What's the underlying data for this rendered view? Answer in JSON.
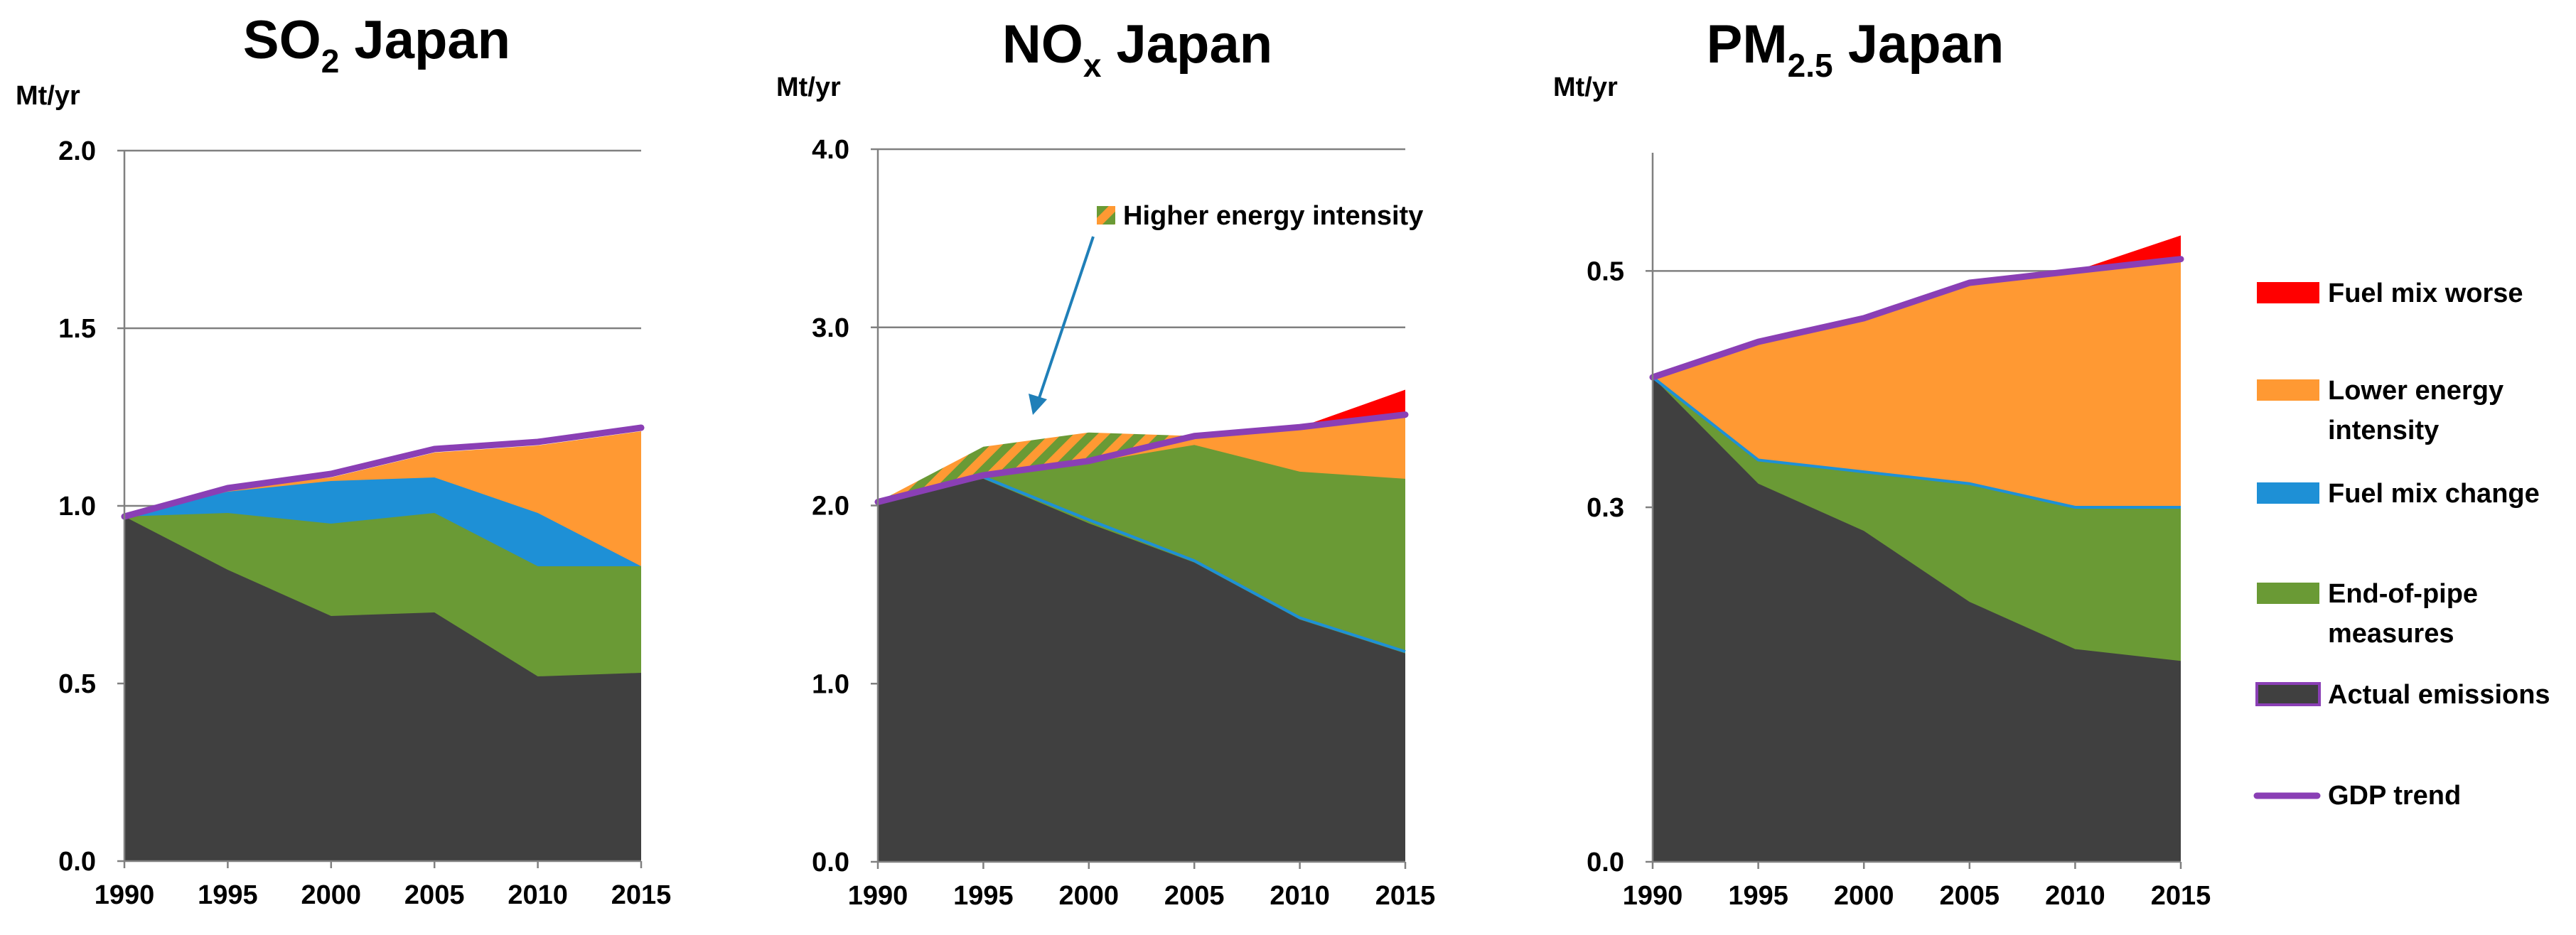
{
  "figure": {
    "legend": [
      {
        "key": "fuel_mix_worse",
        "label_lines": [
          "Fuel mix worse"
        ],
        "color": "#ff0000",
        "kind": "area"
      },
      {
        "key": "lower_energy_intensity",
        "label_lines": [
          "Lower energy",
          "intensity"
        ],
        "color": "#ff9933",
        "kind": "area"
      },
      {
        "key": "fuel_mix_change",
        "label_lines": [
          "Fuel mix change"
        ],
        "color": "#1e90d6",
        "kind": "area"
      },
      {
        "key": "end_of_pipe",
        "label_lines": [
          "End-of-pipe",
          "measures"
        ],
        "color": "#6a9a35",
        "kind": "area"
      },
      {
        "key": "actual",
        "label_lines": [
          "Actual emissions"
        ],
        "color": "#404040",
        "kind": "area"
      },
      {
        "key": "gdp",
        "label_lines": [
          "GDP trend"
        ],
        "color": "#8a3fb5",
        "kind": "line"
      }
    ],
    "colors": {
      "actual": "#404040",
      "end_of_pipe": "#6a9a35",
      "fuel_mix_change": "#1e90d6",
      "lower_energy_intensity": "#ff9933",
      "fuel_mix_worse": "#ff0000",
      "gdp": "#8a3fb5",
      "arrow": "#1f7fb8",
      "grid": "#808080"
    }
  },
  "chart_data": [
    {
      "type": "area",
      "title_main": "SO",
      "title_sub": "2",
      "title_rest": " Japan",
      "ylabel": "Mt/yr",
      "x": [
        1990,
        1995,
        2000,
        2005,
        2010,
        2015
      ],
      "xtick_labels": [
        "1990",
        "1995",
        "2000",
        "2005",
        "2010",
        "2015"
      ],
      "ylim": [
        0,
        2.0
      ],
      "yticks": [
        0,
        0.5,
        1.0,
        1.5,
        2.0
      ],
      "ytick_labels": [
        "0.0",
        "0.5",
        "1.0",
        "1.5",
        "2.0"
      ],
      "gridlines": [
        0.5,
        1.0,
        1.5,
        2.0
      ],
      "layers_cumulative": {
        "actual": [
          0.97,
          0.82,
          0.69,
          0.7,
          0.52,
          0.53
        ],
        "end_of_pipe": [
          0.97,
          0.98,
          0.95,
          0.98,
          0.83,
          0.83
        ],
        "fuel_mix_change": [
          0.97,
          1.04,
          1.07,
          1.08,
          0.98,
          0.83
        ],
        "lower_energy_intensity": [
          0.97,
          1.05,
          1.08,
          1.15,
          1.17,
          1.21
        ]
      },
      "gdp_trend": [
        0.97,
        1.05,
        1.09,
        1.16,
        1.18,
        1.22
      ]
    },
    {
      "type": "area",
      "title_main": "NO",
      "title_sub": "x",
      "title_rest": " Japan",
      "ylabel": "Mt/yr",
      "x": [
        1990,
        1995,
        2000,
        2005,
        2010,
        2015
      ],
      "xtick_labels": [
        "1990",
        "1995",
        "2000",
        "2005",
        "2010",
        "2015"
      ],
      "ylim": [
        0,
        4.0
      ],
      "yticks": [
        0,
        1.0,
        2.0,
        3.0,
        4.0
      ],
      "ytick_labels": [
        "0.0",
        "1.0",
        "2.0",
        "3.0",
        "4.0"
      ],
      "gridlines": [
        1.0,
        2.0,
        3.0,
        4.0
      ],
      "layers_cumulative": {
        "actual": [
          2.02,
          2.15,
          1.9,
          1.68,
          1.36,
          1.17
        ],
        "fuel_mix_change": [
          2.02,
          2.16,
          1.92,
          1.69,
          1.37,
          1.18
        ],
        "end_of_pipe": [
          2.02,
          2.17,
          2.24,
          2.34,
          2.19,
          2.15
        ],
        "lower_energy_intensity": [
          2.02,
          2.17,
          2.25,
          2.39,
          2.44,
          2.51
        ],
        "fuel_mix_worse": [
          2.02,
          2.17,
          2.25,
          2.39,
          2.44,
          2.65
        ]
      },
      "higher_energy_intensity": {
        "x": [
          1990,
          1995,
          2000,
          2005
        ],
        "top": [
          2.02,
          2.33,
          2.41,
          2.39
        ],
        "bottom": [
          2.02,
          2.17,
          2.25,
          2.39
        ]
      },
      "annotation": "Higher energy intensity",
      "gdp_trend": [
        2.02,
        2.17,
        2.25,
        2.39,
        2.44,
        2.51
      ]
    },
    {
      "type": "area",
      "title_main": "PM",
      "title_sub": "2.5",
      "title_rest": " Japan",
      "ylabel": "Mt/yr",
      "x": [
        1990,
        1995,
        2000,
        2005,
        2010,
        2015
      ],
      "xtick_labels": [
        "1990",
        "1995",
        "2000",
        "2005",
        "2010",
        "2015"
      ],
      "ylim": [
        0,
        0.6
      ],
      "yticks": [
        0,
        0.3,
        0.5
      ],
      "ytick_labels": [
        "0.0",
        "0.3",
        "0.5"
      ],
      "gridlines": [
        0.3,
        0.5
      ],
      "layers_cumulative": {
        "actual": [
          0.41,
          0.32,
          0.28,
          0.22,
          0.18,
          0.17
        ],
        "fuel_mix_change": [
          0.41,
          0.34,
          0.33,
          0.32,
          0.3,
          0.3
        ],
        "end_of_pipe": [
          0.41,
          0.34,
          0.33,
          0.32,
          0.3,
          0.3
        ],
        "lower_energy_intensity": [
          0.41,
          0.44,
          0.46,
          0.49,
          0.5,
          0.51
        ],
        "fuel_mix_worse": [
          0.41,
          0.44,
          0.46,
          0.49,
          0.5,
          0.53
        ]
      },
      "gdp_trend": [
        0.41,
        0.44,
        0.46,
        0.49,
        0.5,
        0.51
      ]
    }
  ]
}
